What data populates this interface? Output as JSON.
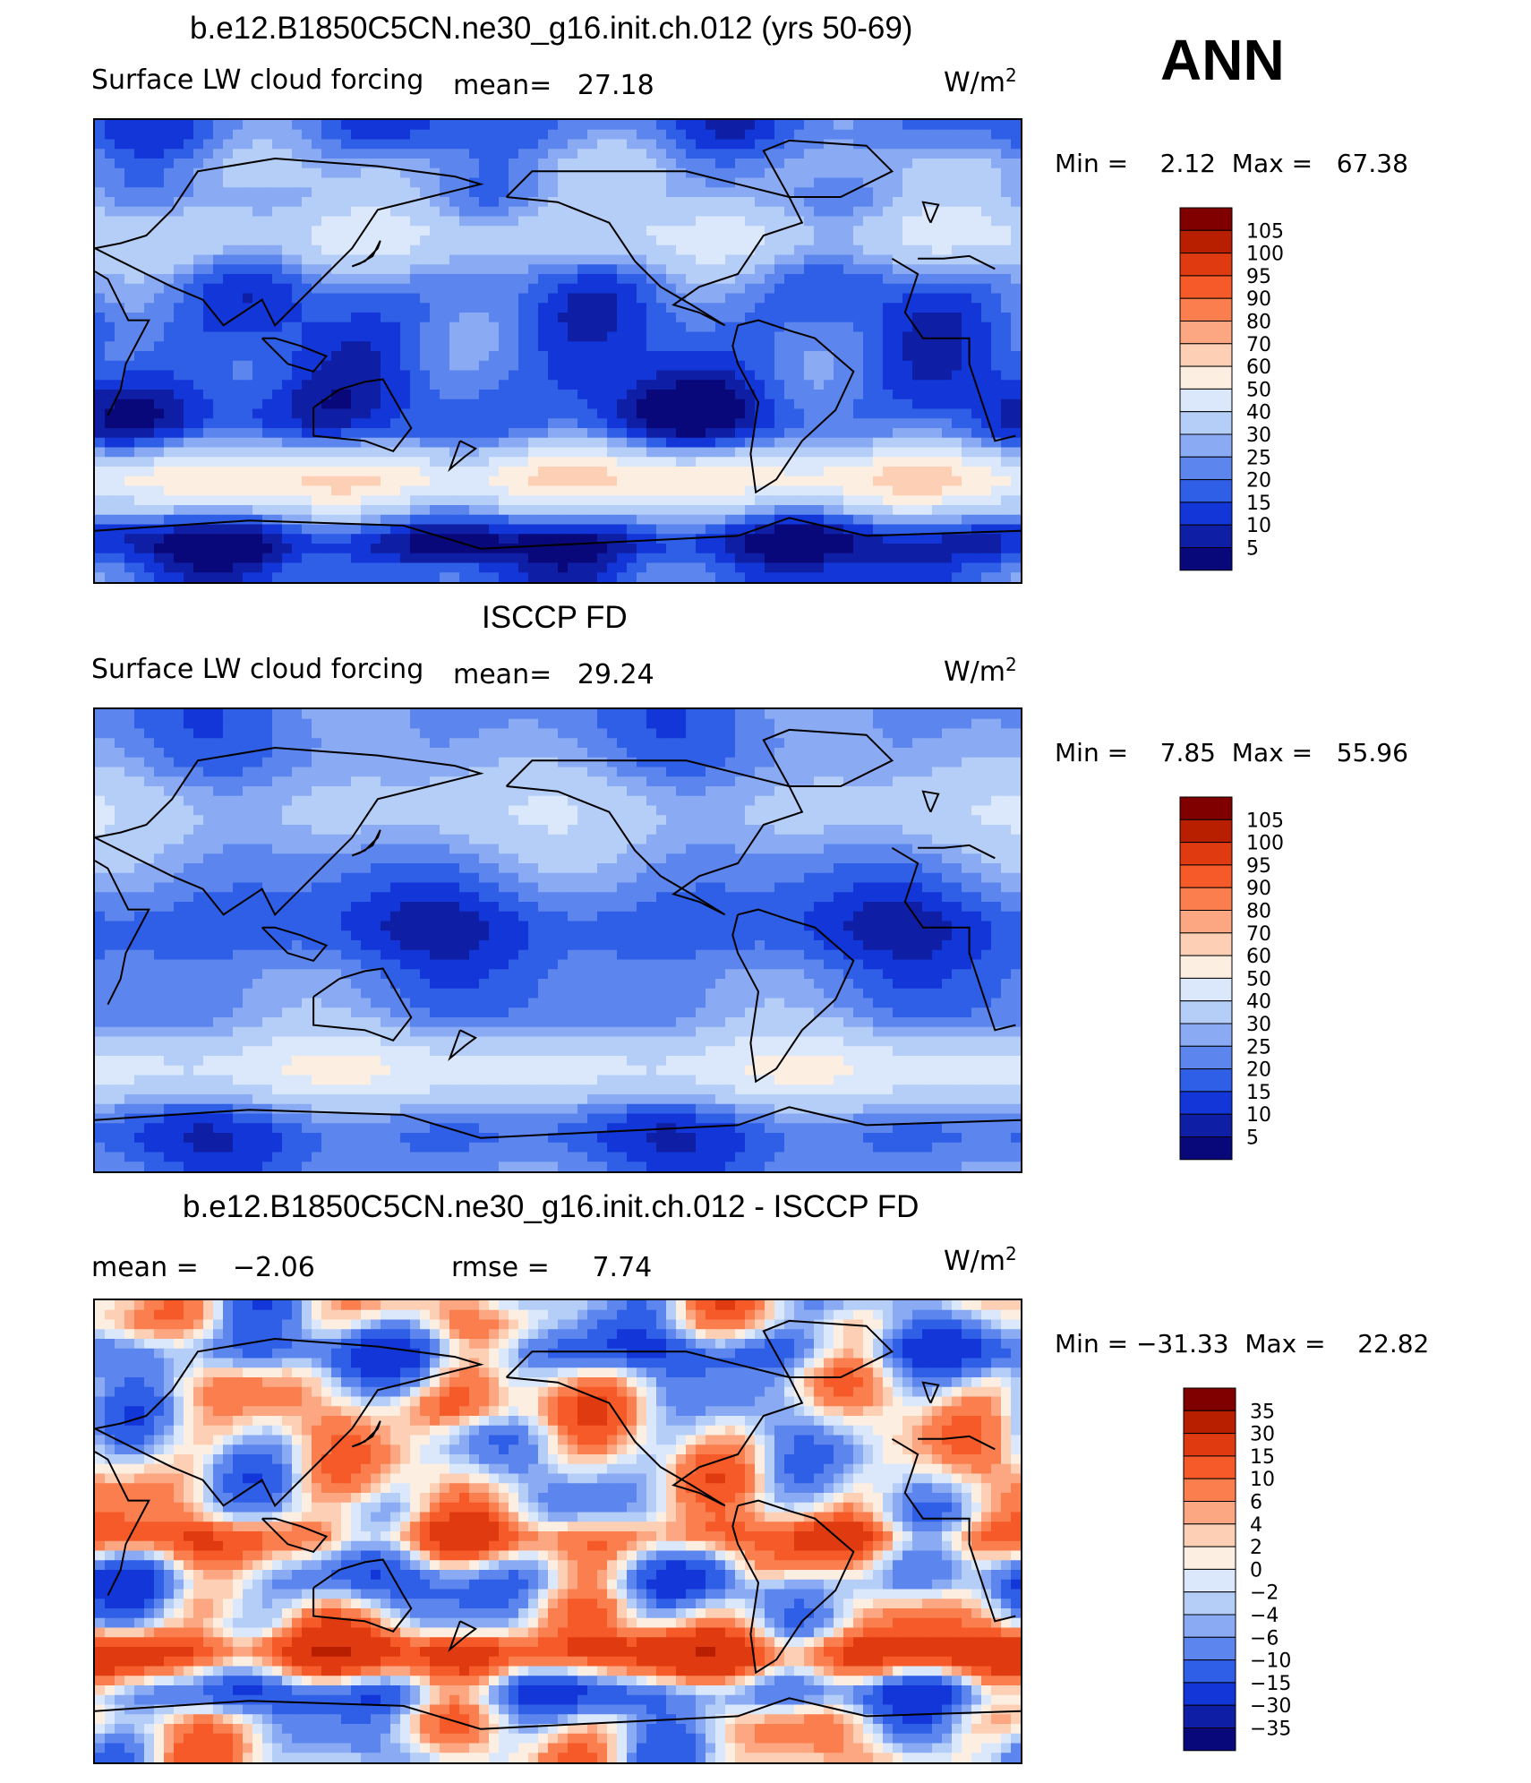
{
  "season": "ANN",
  "panels": [
    {
      "title": "b.e12.B1850C5CN.ne30_g16.init.ch.012 (yrs 50-69)",
      "left_label": "Surface LW cloud forcing",
      "stat1": "mean=   27.18",
      "stat2": "",
      "units": "W/m",
      "units_sup": "2",
      "minmax": "Min =    2.12  Max =   67.38",
      "levels": [
        "105",
        "100",
        "95",
        "90",
        "80",
        "70",
        "60",
        "50",
        "40",
        "30",
        "25",
        "20",
        "15",
        "10",
        "5"
      ],
      "colors": [
        "#800000",
        "#b81e00",
        "#e03a10",
        "#f55a28",
        "#fb7e4e",
        "#fca782",
        "#fdd0b6",
        "#fdeee2",
        "#dbe8fb",
        "#b5cef8",
        "#8aabf3",
        "#5c86ee",
        "#2f5ee7",
        "#1236d8",
        "#0f1fa5",
        "#08087a"
      ],
      "field": "model"
    },
    {
      "title": "ISCCP FD",
      "left_label": "Surface LW cloud forcing",
      "stat1": "mean=   29.24",
      "stat2": "",
      "units": "W/m",
      "units_sup": "2",
      "minmax": "Min =    7.85  Max =   55.96",
      "levels": [
        "105",
        "100",
        "95",
        "90",
        "80",
        "70",
        "60",
        "50",
        "40",
        "30",
        "25",
        "20",
        "15",
        "10",
        "5"
      ],
      "colors": [
        "#800000",
        "#b81e00",
        "#e03a10",
        "#f55a28",
        "#fb7e4e",
        "#fca782",
        "#fdd0b6",
        "#fdeee2",
        "#dbe8fb",
        "#b5cef8",
        "#8aabf3",
        "#5c86ee",
        "#2f5ee7",
        "#1236d8",
        "#0f1fa5",
        "#08087a"
      ],
      "field": "obs"
    },
    {
      "title": "b.e12.B1850C5CN.ne30_g16.init.ch.012 - ISCCP FD",
      "left_label": "mean =    −2.06",
      "stat1": "rmse =     7.74",
      "stat2": "",
      "units": "W/m",
      "units_sup": "2",
      "minmax": "Min = −31.33  Max =    22.82",
      "levels": [
        "35",
        "30",
        "15",
        "10",
        "6",
        "4",
        "2",
        "0",
        "−2",
        "−4",
        "−6",
        "−10",
        "−15",
        "−30",
        "−35"
      ],
      "colors": [
        "#800000",
        "#b81e00",
        "#e03a10",
        "#f55a28",
        "#fb7e4e",
        "#fca782",
        "#fdd0b6",
        "#fdeee2",
        "#dbe8fb",
        "#b5cef8",
        "#8aabf3",
        "#5c86ee",
        "#2f5ee7",
        "#1236d8",
        "#0f1fa5",
        "#08087a"
      ],
      "field": "diff"
    }
  ]
}
